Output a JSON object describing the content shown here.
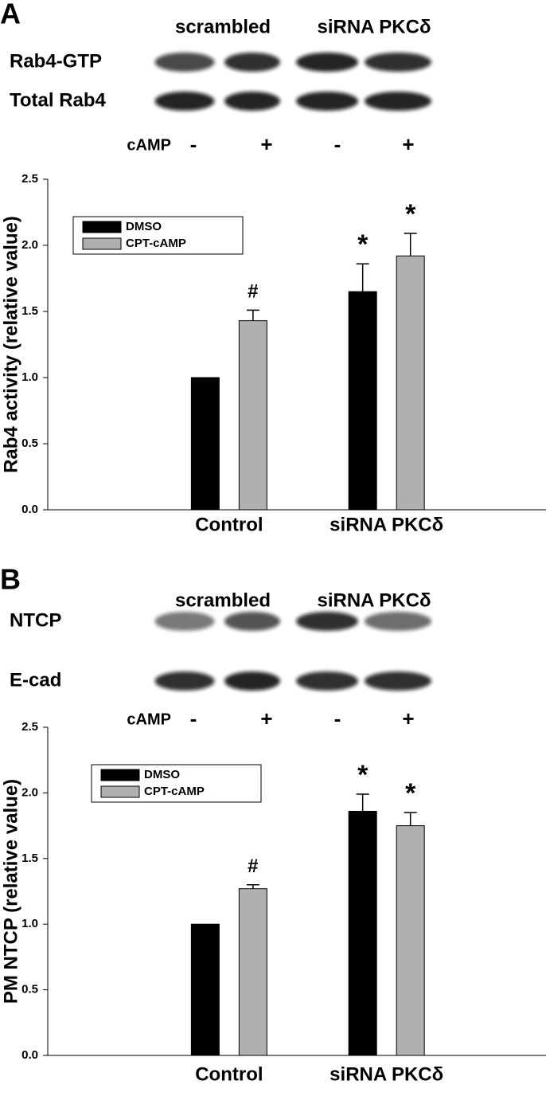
{
  "chart_data": [
    {
      "type": "bar",
      "panel_label": "A",
      "blot": {
        "columns": [
          "scrambled",
          "siRNA PKCδ"
        ],
        "rows": [
          "Rab4-GTP",
          "Total Rab4"
        ],
        "treatment_label": "cAMP",
        "treatment": [
          "-",
          "+",
          "-",
          "+"
        ]
      },
      "y_label": "Rab4 activity (relative value)",
      "categories": [
        "Control",
        "siRNA PKCδ"
      ],
      "series": [
        {
          "name": "DMSO",
          "color": "#000000",
          "values": [
            1.0,
            1.65
          ],
          "errors": [
            0,
            0.21
          ],
          "markers": [
            null,
            "*"
          ]
        },
        {
          "name": "CPT-cAMP",
          "color": "#b0b0b0",
          "values": [
            1.43,
            1.92
          ],
          "errors": [
            0.08,
            0.17
          ],
          "markers": [
            "#",
            "*"
          ]
        }
      ],
      "ylim": [
        0,
        2.5
      ],
      "yticks": [
        {
          "value": 0,
          "label": "0.0"
        },
        0.5,
        {
          "value": 1,
          "label": "1.0"
        },
        1.5,
        {
          "value": 2,
          "label": "2.0"
        },
        2.5
      ],
      "legend": "upper left"
    },
    {
      "type": "bar",
      "panel_label": "B",
      "blot": {
        "columns": [
          "scrambled",
          "siRNA PKCδ"
        ],
        "rows": [
          "NTCP",
          "E-cad"
        ],
        "treatment_label": "cAMP",
        "treatment": [
          "-",
          "+",
          "-",
          "+"
        ]
      },
      "y_label": "PM NTCP (relative value)",
      "categories": [
        "Control",
        "siRNA PKCδ"
      ],
      "series": [
        {
          "name": "DMSO",
          "color": "#000000",
          "values": [
            1.0,
            1.86
          ],
          "errors": [
            0,
            0.13
          ],
          "markers": [
            null,
            "*"
          ]
        },
        {
          "name": "CPT-cAMP",
          "color": "#b0b0b0",
          "values": [
            1.27,
            1.75
          ],
          "errors": [
            0.03,
            0.1
          ],
          "markers": [
            "#",
            "*"
          ]
        }
      ],
      "ylim": [
        0,
        2.5
      ],
      "yticks": [
        {
          "value": 0,
          "label": "0.0"
        },
        0.5,
        {
          "value": 1,
          "label": "1.0"
        },
        1.5,
        {
          "value": 2,
          "label": "2.0"
        },
        2.5
      ],
      "legend": "upper left"
    }
  ]
}
